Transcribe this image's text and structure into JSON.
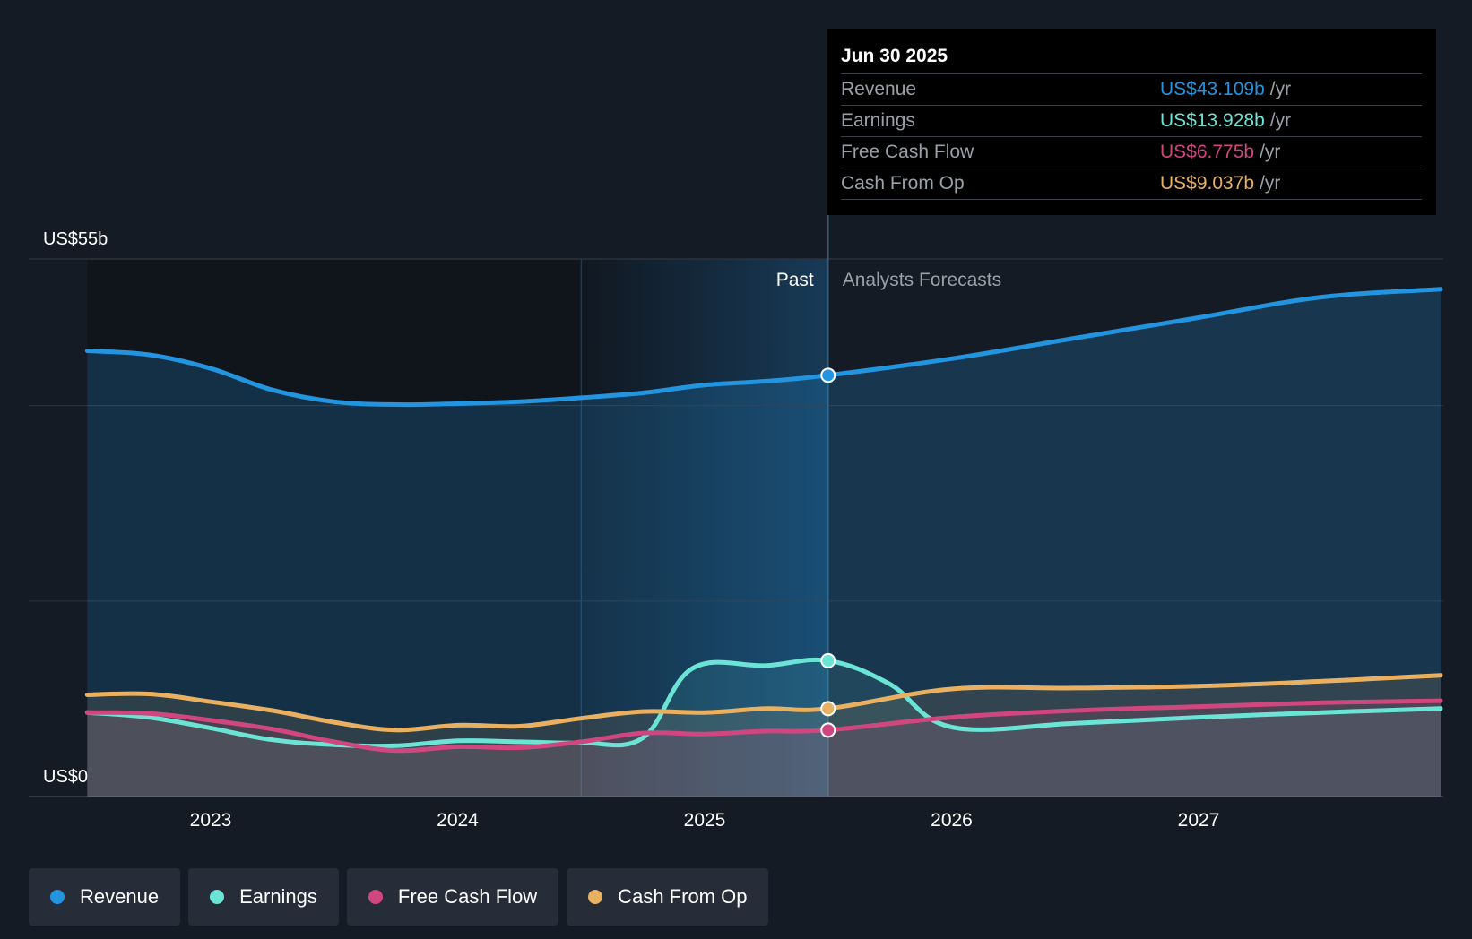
{
  "colors": {
    "background": "#151b24",
    "revenue": "#2394df",
    "earnings": "#6be4d6",
    "fcf": "#d0477f",
    "cfo": "#e8b060",
    "grid": "#2c333d",
    "past_shade": "#1d5a8a"
  },
  "tooltip": {
    "date": "Jun 30 2025",
    "rows": [
      {
        "label": "Revenue",
        "value": "US$43.109b",
        "unit": "/yr"
      },
      {
        "label": "Earnings",
        "value": "US$13.928b",
        "unit": "/yr"
      },
      {
        "label": "Free Cash Flow",
        "value": "US$6.775b",
        "unit": "/yr"
      },
      {
        "label": "Cash From Op",
        "value": "US$9.037b",
        "unit": "/yr"
      }
    ]
  },
  "legend": [
    {
      "label": "Revenue",
      "icon": "revenue-dot-icon"
    },
    {
      "label": "Earnings",
      "icon": "earnings-dot-icon"
    },
    {
      "label": "Free Cash Flow",
      "icon": "fcf-dot-icon"
    },
    {
      "label": "Cash From Op",
      "icon": "cfo-dot-icon"
    }
  ],
  "chart_data": {
    "type": "line",
    "title": "",
    "ylabel": "",
    "xlabel": "",
    "y_top_label": "US$55b",
    "y_bottom_label": "US$0",
    "ylim": [
      0,
      55
    ],
    "xlim": [
      2022.5,
      2027.98
    ],
    "x_ticks": [
      {
        "value": 2023,
        "label": "2023"
      },
      {
        "value": 2024,
        "label": "2024"
      },
      {
        "value": 2025,
        "label": "2025"
      },
      {
        "value": 2026,
        "label": "2026"
      },
      {
        "value": 2027,
        "label": "2027"
      }
    ],
    "gridlines": [
      0,
      20,
      40,
      55
    ],
    "past_label": "Past",
    "forecast_label": "Analysts Forecasts",
    "divider_x": 2025.5,
    "highlight_start_x": 2024.5,
    "highlight_date": "Jun 30 2025",
    "series": [
      {
        "name": "Revenue",
        "key": "revenue",
        "points": [
          [
            2022.5,
            45.6
          ],
          [
            2022.75,
            45.2
          ],
          [
            2023.0,
            43.8
          ],
          [
            2023.25,
            41.6
          ],
          [
            2023.5,
            40.4
          ],
          [
            2023.75,
            40.1
          ],
          [
            2024.0,
            40.2
          ],
          [
            2024.25,
            40.4
          ],
          [
            2024.5,
            40.8
          ],
          [
            2024.75,
            41.3
          ],
          [
            2025.0,
            42.1
          ],
          [
            2025.25,
            42.5
          ],
          [
            2025.5,
            43.1
          ],
          [
            2026.0,
            44.8
          ],
          [
            2026.5,
            46.9
          ],
          [
            2027.0,
            49.0
          ],
          [
            2027.5,
            51.1
          ],
          [
            2027.98,
            51.9
          ]
        ]
      },
      {
        "name": "Earnings",
        "key": "earnings",
        "points": [
          [
            2022.5,
            8.6
          ],
          [
            2022.75,
            8.1
          ],
          [
            2023.0,
            7.0
          ],
          [
            2023.25,
            5.8
          ],
          [
            2023.5,
            5.3
          ],
          [
            2023.75,
            5.2
          ],
          [
            2024.0,
            5.7
          ],
          [
            2024.25,
            5.6
          ],
          [
            2024.5,
            5.5
          ],
          [
            2024.75,
            6.0
          ],
          [
            2024.95,
            13.1
          ],
          [
            2025.25,
            13.4
          ],
          [
            2025.5,
            13.9
          ],
          [
            2025.75,
            11.5
          ],
          [
            2026.0,
            7.1
          ],
          [
            2026.5,
            7.5
          ],
          [
            2027.0,
            8.1
          ],
          [
            2027.5,
            8.6
          ],
          [
            2027.98,
            9.0
          ]
        ]
      },
      {
        "name": "Free Cash Flow",
        "key": "fcf",
        "points": [
          [
            2022.5,
            8.6
          ],
          [
            2022.75,
            8.5
          ],
          [
            2023.0,
            7.8
          ],
          [
            2023.25,
            6.9
          ],
          [
            2023.5,
            5.6
          ],
          [
            2023.75,
            4.7
          ],
          [
            2024.0,
            5.1
          ],
          [
            2024.25,
            5.0
          ],
          [
            2024.5,
            5.6
          ],
          [
            2024.75,
            6.5
          ],
          [
            2025.0,
            6.4
          ],
          [
            2025.25,
            6.7
          ],
          [
            2025.5,
            6.8
          ],
          [
            2026.0,
            8.1
          ],
          [
            2026.5,
            8.8
          ],
          [
            2027.0,
            9.2
          ],
          [
            2027.5,
            9.6
          ],
          [
            2027.98,
            9.8
          ]
        ]
      },
      {
        "name": "Cash From Op",
        "key": "cfo",
        "points": [
          [
            2022.5,
            10.4
          ],
          [
            2022.75,
            10.5
          ],
          [
            2023.0,
            9.7
          ],
          [
            2023.25,
            8.8
          ],
          [
            2023.5,
            7.6
          ],
          [
            2023.75,
            6.8
          ],
          [
            2024.0,
            7.3
          ],
          [
            2024.25,
            7.2
          ],
          [
            2024.5,
            8.0
          ],
          [
            2024.75,
            8.7
          ],
          [
            2025.0,
            8.6
          ],
          [
            2025.25,
            9.0
          ],
          [
            2025.5,
            9.0
          ],
          [
            2026.0,
            11.0
          ],
          [
            2026.5,
            11.1
          ],
          [
            2027.0,
            11.3
          ],
          [
            2027.5,
            11.8
          ],
          [
            2027.98,
            12.4
          ]
        ]
      }
    ],
    "markers": [
      {
        "series": "revenue",
        "x": 2025.5,
        "y": 43.1
      },
      {
        "series": "earnings",
        "x": 2025.5,
        "y": 13.9
      },
      {
        "series": "cfo",
        "x": 2025.5,
        "y": 9.0
      },
      {
        "series": "fcf",
        "x": 2025.5,
        "y": 6.8
      }
    ]
  }
}
